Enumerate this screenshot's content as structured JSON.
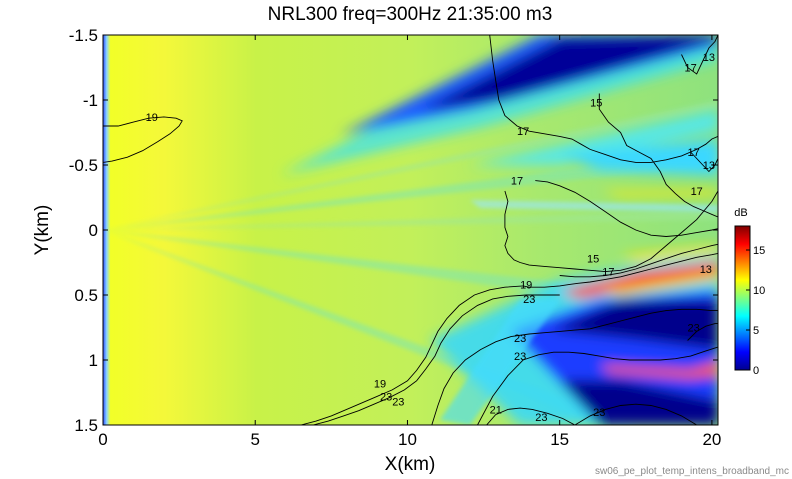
{
  "chart_data": {
    "type": "heatmap",
    "title": "NRL300 freq=300Hz 21:35:00 m3",
    "xlabel": "X(km)",
    "ylabel": "Y(km)",
    "xlim": [
      0,
      20.2
    ],
    "ylim": [
      -1.5,
      1.5
    ],
    "y_axis_reversed": true,
    "x_ticks": [
      0,
      5,
      10,
      15,
      20
    ],
    "x_tick_labels": [
      "0",
      "5",
      "10",
      "15",
      "20"
    ],
    "y_ticks": [
      -1.5,
      -1,
      -0.5,
      0,
      0.5,
      1,
      1.5
    ],
    "y_tick_labels": [
      "-1.5",
      "-1",
      "-0.5",
      "0",
      "0.5",
      "1",
      "1.5"
    ],
    "colorbar": {
      "label": "dB",
      "range": [
        0,
        18
      ],
      "ticks": [
        0,
        5,
        10,
        15
      ],
      "tick_labels": [
        "0",
        "5",
        "10",
        "15"
      ],
      "colormap": "jet"
    },
    "colormap_colors": [
      "#00008f",
      "#0000ff",
      "#00ffff",
      "#ffff00",
      "#ff0000",
      "#800000"
    ],
    "contour_lines": [
      {
        "level": 17,
        "x": [
          12.7,
          12.8,
          12.9,
          13.0,
          13.2,
          13.6,
          14.0,
          14.5,
          15.0,
          15.4,
          15.7,
          16.0,
          16.5,
          17.0,
          17.5,
          18.0,
          18.5,
          19.0,
          19.5,
          19.8,
          20.0,
          20.2
        ],
        "y": [
          -1.5,
          -1.3,
          -1.15,
          -1.0,
          -0.88,
          -0.8,
          -0.76,
          -0.74,
          -0.72,
          -0.7,
          -0.66,
          -0.62,
          -0.58,
          -0.54,
          -0.52,
          -0.52,
          -0.54,
          -0.57,
          -0.62,
          -0.66,
          -0.7,
          -0.72
        ]
      },
      {
        "level": 17,
        "x": [
          13.2,
          13.3,
          13.2,
          13.2,
          13.3,
          13.2,
          13.3,
          13.5,
          13.7,
          14.0,
          14.5,
          15.0,
          15.5,
          16.0,
          16.5,
          17.0,
          17.5,
          18.0,
          18.5,
          19.0,
          19.5,
          20.0,
          20.2
        ],
        "y": [
          -0.3,
          -0.22,
          -0.12,
          -0.02,
          0.05,
          0.12,
          0.18,
          0.23,
          0.25,
          0.27,
          0.28,
          0.29,
          0.3,
          0.31,
          0.32,
          0.31,
          0.28,
          0.22,
          0.12,
          0.02,
          -0.08,
          -0.22,
          -0.3
        ]
      },
      {
        "level": 17,
        "x": [
          14.2,
          14.6,
          15.0,
          15.5,
          16.0,
          16.5,
          17.0,
          17.5,
          18.0,
          18.5,
          19.0,
          19.5,
          20.0,
          20.2
        ],
        "y": [
          -0.38,
          -0.37,
          -0.34,
          -0.29,
          -0.22,
          -0.14,
          -0.06,
          0.0,
          0.04,
          0.05,
          0.04,
          0.02,
          0.0,
          -0.01
        ]
      },
      {
        "level": 15,
        "x": [
          16.3,
          16.3,
          16.6,
          17.0,
          17.2,
          17.6,
          18.0,
          18.3,
          18.5,
          18.8,
          19.1,
          19.4,
          19.7,
          20.0,
          20.2
        ],
        "y": [
          -1.05,
          -0.93,
          -0.83,
          -0.75,
          -0.65,
          -0.6,
          -0.55,
          -0.45,
          -0.35,
          -0.28,
          -0.22,
          -0.18,
          -0.15,
          -0.12,
          -0.1
        ]
      },
      {
        "level": 15,
        "x": [
          15.0,
          15.5,
          16.0,
          16.5,
          17.0,
          17.5,
          18.0,
          18.5,
          19.0,
          19.5,
          20.0,
          20.2
        ],
        "y": [
          0.35,
          0.36,
          0.36,
          0.35,
          0.33,
          0.3,
          0.26,
          0.22,
          0.18,
          0.15,
          0.12,
          0.11
        ]
      },
      {
        "level": 13,
        "x": [
          19.0,
          19.2,
          19.5,
          19.7,
          19.9,
          20.1,
          20.2
        ],
        "y": [
          -1.35,
          -1.25,
          -1.2,
          -1.3,
          -1.4,
          -1.45,
          -1.5
        ]
      },
      {
        "level": 13,
        "x": [
          19.3,
          19.5,
          19.7,
          19.9,
          20.1,
          20.2
        ],
        "y": [
          -0.6,
          -0.55,
          -0.5,
          -0.45,
          -0.5,
          -0.55
        ]
      },
      {
        "level": 19,
        "x": [
          0.0,
          0.5,
          1.0,
          1.5,
          2.0,
          2.4,
          2.6,
          2.5,
          2.2,
          1.8,
          1.3,
          0.8,
          0.3,
          0.0
        ],
        "y": [
          -0.8,
          -0.8,
          -0.83,
          -0.86,
          -0.87,
          -0.86,
          -0.84,
          -0.8,
          -0.74,
          -0.68,
          -0.61,
          -0.56,
          -0.53,
          -0.52
        ]
      },
      {
        "level": 19,
        "x": [
          13.8,
          14.0,
          14.5,
          15.0,
          15.3,
          15.6,
          16.0,
          16.5,
          17.0,
          17.5,
          18.0,
          18.5,
          19.0,
          19.5,
          20.0,
          20.2
        ],
        "y": [
          0.43,
          0.44,
          0.44,
          0.43,
          0.42,
          0.41,
          0.4,
          0.38,
          0.36,
          0.33,
          0.3,
          0.27,
          0.24,
          0.21,
          0.19,
          0.18
        ]
      },
      {
        "level": 19,
        "x": [
          6.5,
          7.0,
          7.5,
          8.0,
          8.5,
          9.0,
          9.5,
          10.0,
          10.3,
          10.6,
          10.8,
          11.0,
          11.3,
          11.7,
          12.2,
          12.7,
          13.2,
          13.8
        ],
        "y": [
          1.5,
          1.47,
          1.43,
          1.38,
          1.33,
          1.28,
          1.23,
          1.16,
          1.08,
          0.98,
          0.88,
          0.78,
          0.68,
          0.58,
          0.5,
          0.46,
          0.44,
          0.43
        ]
      },
      {
        "level": 23,
        "x": [
          6.9,
          7.4,
          7.9,
          8.4,
          8.9,
          9.4,
          9.9,
          10.3,
          10.6,
          10.9,
          11.1,
          11.4,
          11.8,
          12.3,
          12.8,
          13.3,
          13.9,
          14.5,
          15.0
        ],
        "y": [
          1.5,
          1.47,
          1.43,
          1.39,
          1.34,
          1.29,
          1.23,
          1.16,
          1.07,
          0.97,
          0.87,
          0.76,
          0.66,
          0.58,
          0.53,
          0.51,
          0.5,
          0.5,
          0.5
        ]
      },
      {
        "level": 23,
        "x": [
          10.8,
          11.0,
          11.2,
          11.5,
          11.9,
          12.4,
          12.9,
          13.4,
          14.0,
          14.5,
          15.0,
          15.5,
          16.0,
          16.5,
          17.0,
          17.5,
          18.0,
          18.5,
          19.0,
          19.5,
          20.0,
          20.2
        ],
        "y": [
          1.5,
          1.35,
          1.22,
          1.1,
          1.0,
          0.92,
          0.86,
          0.82,
          0.8,
          0.79,
          0.78,
          0.77,
          0.76,
          0.73,
          0.7,
          0.67,
          0.64,
          0.62,
          0.61,
          0.61,
          0.62,
          0.62
        ]
      },
      {
        "level": 23,
        "x": [
          12.3,
          12.8,
          13.3,
          13.8,
          14.3,
          14.8,
          15.3,
          15.8,
          16.3,
          16.8,
          17.3,
          17.8,
          18.3,
          18.8,
          19.3,
          19.8,
          20.2
        ],
        "y": [
          1.5,
          1.28,
          1.12,
          1.0,
          0.96,
          0.94,
          0.94,
          0.95,
          0.97,
          0.99,
          1.0,
          1.0,
          1.0,
          0.99,
          0.97,
          0.93,
          0.9
        ]
      },
      {
        "level": 23,
        "x": [
          19.2,
          19.5,
          19.8,
          20.1,
          20.2
        ],
        "y": [
          0.85,
          0.78,
          0.74,
          0.72,
          0.72
        ]
      },
      {
        "level": 23,
        "x": [
          12.6,
          12.9,
          13.3,
          13.7,
          14.1,
          14.6,
          15.1,
          15.5
        ],
        "y": [
          1.5,
          1.42,
          1.38,
          1.37,
          1.38,
          1.41,
          1.45,
          1.5
        ]
      },
      {
        "level": 23,
        "x": [
          15.5,
          16.0,
          16.5,
          17.0,
          17.5,
          18.0,
          18.5,
          19.0,
          19.5
        ],
        "y": [
          1.5,
          1.43,
          1.38,
          1.35,
          1.34,
          1.35,
          1.38,
          1.43,
          1.5
        ]
      }
    ],
    "contour_labels": [
      {
        "text": "19",
        "x": 1.6,
        "y": -0.87
      },
      {
        "text": "17",
        "x": 13.8,
        "y": -0.76
      },
      {
        "text": "17",
        "x": 13.6,
        "y": -0.38
      },
      {
        "text": "15",
        "x": 16.2,
        "y": -0.98
      },
      {
        "text": "17",
        "x": 19.3,
        "y": -1.25
      },
      {
        "text": "13",
        "x": 19.9,
        "y": -1.33
      },
      {
        "text": "17",
        "x": 19.4,
        "y": -0.6
      },
      {
        "text": "13",
        "x": 19.9,
        "y": -0.5
      },
      {
        "text": "17",
        "x": 19.5,
        "y": -0.3
      },
      {
        "text": "15",
        "x": 16.1,
        "y": 0.22
      },
      {
        "text": "17",
        "x": 16.6,
        "y": 0.32
      },
      {
        "text": "19",
        "x": 13.9,
        "y": 0.42
      },
      {
        "text": "23",
        "x": 14.0,
        "y": 0.53
      },
      {
        "text": "23",
        "x": 13.7,
        "y": 0.83
      },
      {
        "text": "23",
        "x": 13.7,
        "y": 0.97
      },
      {
        "text": "19",
        "x": 9.1,
        "y": 1.18
      },
      {
        "text": "23",
        "x": 9.3,
        "y": 1.28
      },
      {
        "text": "23",
        "x": 9.7,
        "y": 1.32
      },
      {
        "text": "23",
        "x": 14.4,
        "y": 1.44
      },
      {
        "text": "23",
        "x": 16.3,
        "y": 1.4
      },
      {
        "text": "23",
        "x": 19.4,
        "y": 0.75
      },
      {
        "text": "13",
        "x": 19.8,
        "y": 0.3
      },
      {
        "text": "21",
        "x": 12.9,
        "y": 1.38
      }
    ]
  },
  "footer": {
    "caption": "sw06_pe_plot_temp_intens_broadband_mc"
  }
}
